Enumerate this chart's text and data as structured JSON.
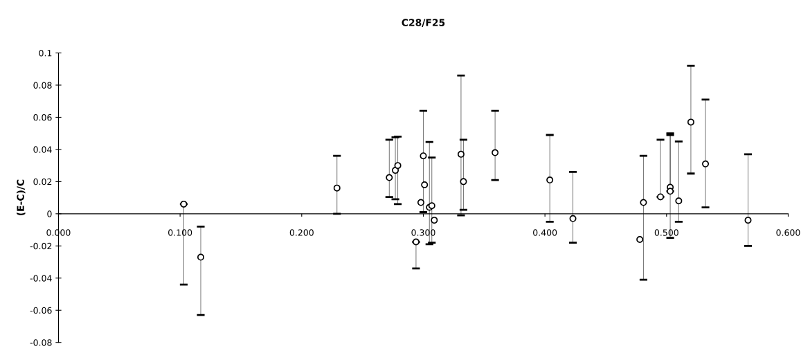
{
  "chart_data": {
    "type": "scatter",
    "title": "C28/F25",
    "ylabel": "(E-C)/C",
    "marker": "circle",
    "grid": false,
    "xlim": [
      0,
      0.6
    ],
    "ylim": [
      -0.08,
      0.1
    ],
    "xticks": [
      {
        "value": 0,
        "label": "0.000"
      },
      {
        "value": 0.1,
        "label": "0.100"
      },
      {
        "value": 0.2,
        "label": "0.200"
      },
      {
        "value": 0.3,
        "label": "0.300"
      },
      {
        "value": 0.4,
        "label": "0.400"
      },
      {
        "value": 0.5,
        "label": "0.500"
      },
      {
        "value": 0.6,
        "label": "0.600"
      }
    ],
    "yticks": [
      -0.08,
      -0.06,
      -0.04,
      -0.02,
      {
        "value": 0,
        "label": "0"
      },
      0.02,
      0.04,
      0.06,
      0.08,
      0.1
    ],
    "series": [
      {
        "color": "#000000",
        "x": [
          0.103,
          0.117,
          0.229,
          0.272,
          0.277,
          0.279,
          0.298,
          0.3,
          0.301,
          0.305,
          0.307,
          0.309,
          0.294,
          0.331,
          0.333,
          0.359,
          0.404,
          0.423,
          0.481,
          0.478,
          0.495,
          0.503,
          0.503,
          0.51,
          0.52,
          0.532,
          0.567
        ],
        "values": [
          0.006,
          -0.027,
          0.016,
          0.0225,
          0.027,
          0.03,
          0.007,
          0.036,
          0.018,
          0.004,
          0.005,
          -0.004,
          -0.0175,
          0.037,
          0.02,
          0.038,
          0.021,
          -0.003,
          0.007,
          -0.016,
          0.0105,
          0.0165,
          0.014,
          0.008,
          0.057,
          0.031,
          -0.004
        ],
        "errors": [
          [
            -0.044,
            0.006
          ],
          [
            -0.063,
            -0.008
          ],
          [
            0.0,
            0.036
          ],
          [
            0.0104,
            0.046
          ],
          [
            0.009,
            0.0475
          ],
          [
            0.006,
            0.048
          ],
          null,
          [
            0.001,
            0.064
          ],
          null,
          [
            -0.019,
            0.0446
          ],
          [
            -0.018,
            0.035
          ],
          null,
          [
            -0.034,
            -0.0175
          ],
          [
            -0.001,
            0.086
          ],
          [
            0.0025,
            0.046
          ],
          [
            0.021,
            0.064
          ],
          [
            -0.005,
            0.049
          ],
          [
            -0.018,
            0.026
          ],
          [
            -0.041,
            0.036
          ],
          [
            null,
            null
          ],
          [
            0.0105,
            0.046
          ],
          [
            -0.015,
            0.05
          ],
          [
            0.014,
            0.049
          ],
          [
            -0.005,
            0.045
          ],
          [
            0.025,
            0.092
          ],
          [
            0.004,
            0.071
          ],
          [
            -0.02,
            0.037
          ]
        ]
      }
    ]
  }
}
